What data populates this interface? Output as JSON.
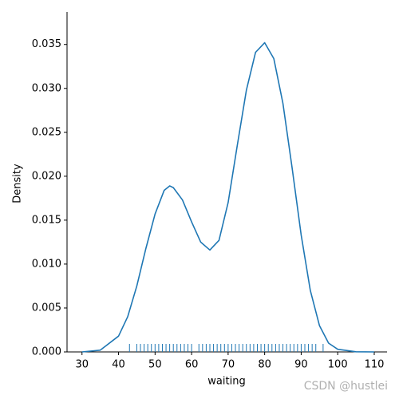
{
  "chart_data": {
    "type": "line",
    "xlabel": "waiting",
    "ylabel": "Density",
    "x": [
      30,
      35,
      40,
      42.5,
      45,
      47.5,
      50,
      52.5,
      54,
      55,
      57.5,
      60,
      62.5,
      65,
      67.5,
      70,
      72.5,
      75,
      77.5,
      80,
      82.5,
      85,
      87.5,
      90,
      92.5,
      95,
      97.5,
      100,
      105,
      110
    ],
    "series": [
      {
        "color": "#1f77b4",
        "values": [
          0.0,
          0.0002,
          0.0018,
          0.004,
          0.0075,
          0.0118,
          0.0157,
          0.0184,
          0.0189,
          0.0187,
          0.0173,
          0.0148,
          0.0125,
          0.0116,
          0.0127,
          0.017,
          0.0235,
          0.0298,
          0.0341,
          0.0352,
          0.0334,
          0.0283,
          0.021,
          0.0133,
          0.007,
          0.003,
          0.001,
          0.0003,
          2e-05,
          0.0
        ]
      }
    ],
    "rug": {
      "color": "#1f77b4",
      "values": [
        43,
        45,
        46,
        47,
        48,
        49,
        50,
        51,
        52,
        53,
        54,
        55,
        56,
        57,
        58,
        59,
        60,
        62,
        63,
        64,
        65,
        66,
        67,
        68,
        69,
        70,
        71,
        72,
        73,
        74,
        75,
        76,
        77,
        78,
        79,
        80,
        81,
        82,
        83,
        84,
        85,
        86,
        87,
        88,
        89,
        90,
        91,
        92,
        93,
        94,
        96
      ]
    },
    "xlim": [
      25.9,
      113.5
    ],
    "ylim": [
      0,
      0.0387
    ],
    "xticks": [
      30,
      40,
      50,
      60,
      70,
      80,
      90,
      100,
      110
    ],
    "yticks": [
      {
        "value": 0,
        "label": "0.000"
      },
      {
        "value": 0.005,
        "label": "0.005"
      },
      {
        "value": 0.01,
        "label": "0.010"
      },
      {
        "value": 0.015,
        "label": "0.015"
      },
      {
        "value": 0.02,
        "label": "0.020"
      },
      {
        "value": 0.025,
        "label": "0.025"
      },
      {
        "value": 0.03,
        "label": "0.030"
      },
      {
        "value": 0.035,
        "label": "0.035"
      }
    ],
    "grid": false,
    "watermark": "CSDN @hustlei"
  }
}
